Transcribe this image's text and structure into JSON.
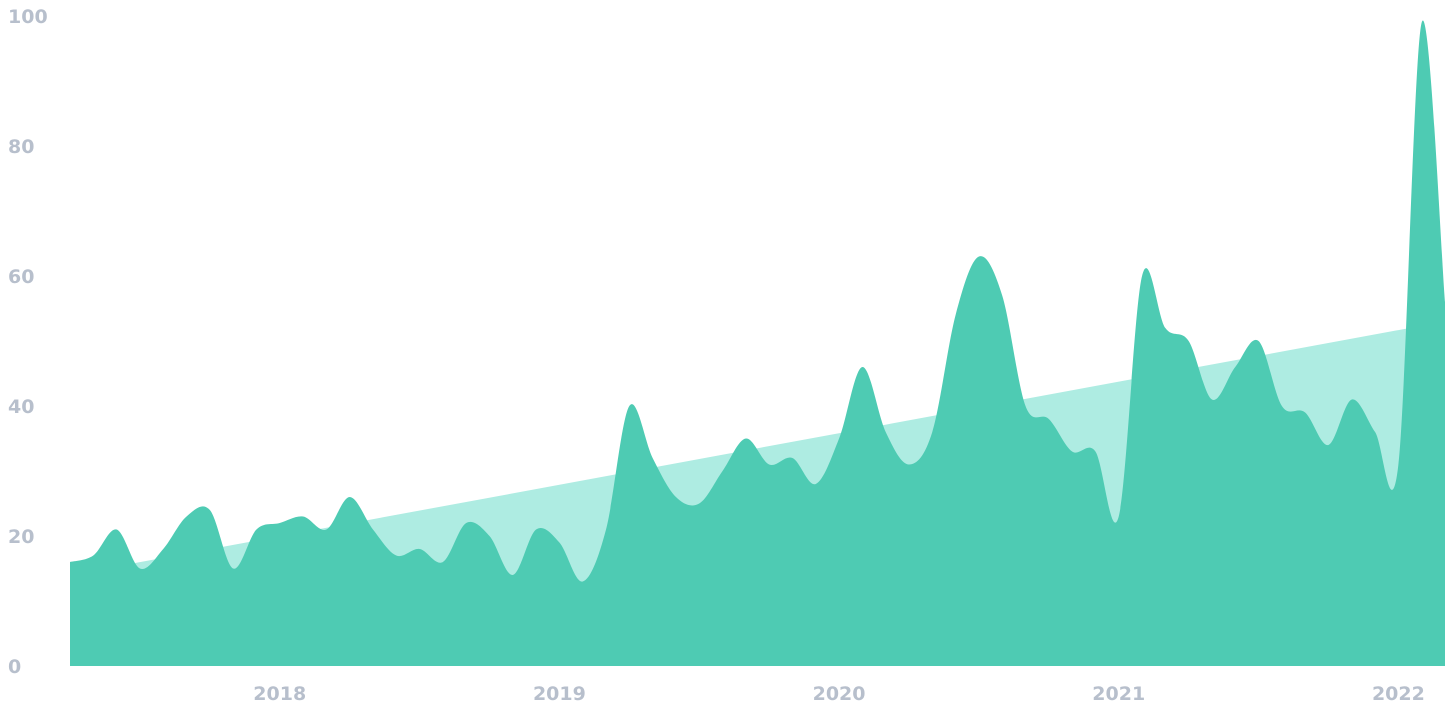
{
  "chart_data": {
    "type": "area",
    "title": "",
    "xlabel": "",
    "ylabel": "",
    "ylim": [
      0,
      100
    ],
    "yticks": [
      "0",
      "20",
      "40",
      "60",
      "80",
      "100"
    ],
    "xticks": [
      "2018",
      "2019",
      "2020",
      "2021",
      "2022"
    ],
    "xlim": [
      "2017-04",
      "2022-03"
    ],
    "grid": false,
    "legend": "none",
    "series": [
      {
        "kind": "trend",
        "color": "#aeece2",
        "x": [
          "2017-04",
          "2022-03"
        ],
        "values": [
          14,
          53
        ]
      },
      {
        "kind": "interest",
        "color": "#4ecbb3",
        "x": [
          "2017-04",
          "2017-05",
          "2017-06",
          "2017-07",
          "2017-08",
          "2017-09",
          "2017-10",
          "2017-11",
          "2017-12",
          "2018-01",
          "2018-02",
          "2018-03",
          "2018-04",
          "2018-05",
          "2018-06",
          "2018-07",
          "2018-08",
          "2018-09",
          "2018-10",
          "2018-11",
          "2018-12",
          "2019-01",
          "2019-02",
          "2019-03",
          "2019-04",
          "2019-05",
          "2019-06",
          "2019-07",
          "2019-08",
          "2019-09",
          "2019-10",
          "2019-11",
          "2019-12",
          "2020-01",
          "2020-02",
          "2020-03",
          "2020-04",
          "2020-05",
          "2020-06",
          "2020-07",
          "2020-08",
          "2020-09",
          "2020-10",
          "2020-11",
          "2020-12",
          "2021-01",
          "2021-02",
          "2021-03",
          "2021-04",
          "2021-05",
          "2021-06",
          "2021-07",
          "2021-08",
          "2021-09",
          "2021-10",
          "2021-11",
          "2021-12",
          "2022-01",
          "2022-02",
          "2022-03"
        ],
        "values": [
          16,
          17,
          21,
          15,
          18,
          23,
          24,
          15,
          21,
          22,
          23,
          21,
          26,
          21,
          17,
          18,
          16,
          22,
          20,
          14,
          21,
          19,
          13,
          21,
          40,
          32,
          26,
          25,
          30,
          35,
          31,
          32,
          28,
          35,
          46,
          36,
          31,
          36,
          54,
          63,
          57,
          40,
          38,
          33,
          33,
          23,
          60,
          52,
          50,
          41,
          46,
          50,
          40,
          39,
          34,
          41,
          36,
          31,
          99,
          56
        ]
      }
    ]
  }
}
